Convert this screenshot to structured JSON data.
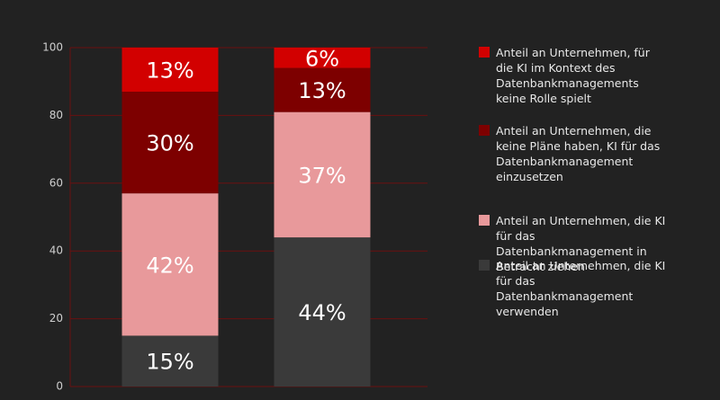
{
  "chart_data": {
    "type": "stacked-bar",
    "categories": [
      null,
      null
    ],
    "series": [
      {
        "name": "Anteil an Unternehmen, die KI für das Datenbankmanagement verwenden",
        "color": "#3a3a3a",
        "values": [
          15,
          44
        ],
        "value_labels": [
          "15%",
          "44%"
        ]
      },
      {
        "name": "Anteil an Unternehmen, die KI für das Datenbankmanagement in Betracht ziehen",
        "color": "#e8999b",
        "values": [
          42,
          37
        ],
        "value_labels": [
          "42%",
          "37%"
        ]
      },
      {
        "name": "Anteil an Unternehmen, die keine Pläne haben, KI für das Datenbankmanagement einzusetzen",
        "color": "#7d0000",
        "values": [
          30,
          13
        ],
        "value_labels": [
          "30%",
          "13%"
        ]
      },
      {
        "name": "Anteil an Unternehmen, für die KI im Kontext des Datenbankmanagements keine Rolle spielt",
        "color": "#d20000",
        "values": [
          13,
          6
        ],
        "value_labels": [
          "13%",
          "6%"
        ]
      }
    ],
    "ylim": [
      0,
      100
    ],
    "yticks": [
      0,
      20,
      40,
      60,
      80,
      100
    ],
    "grid": true,
    "legend": "right"
  }
}
